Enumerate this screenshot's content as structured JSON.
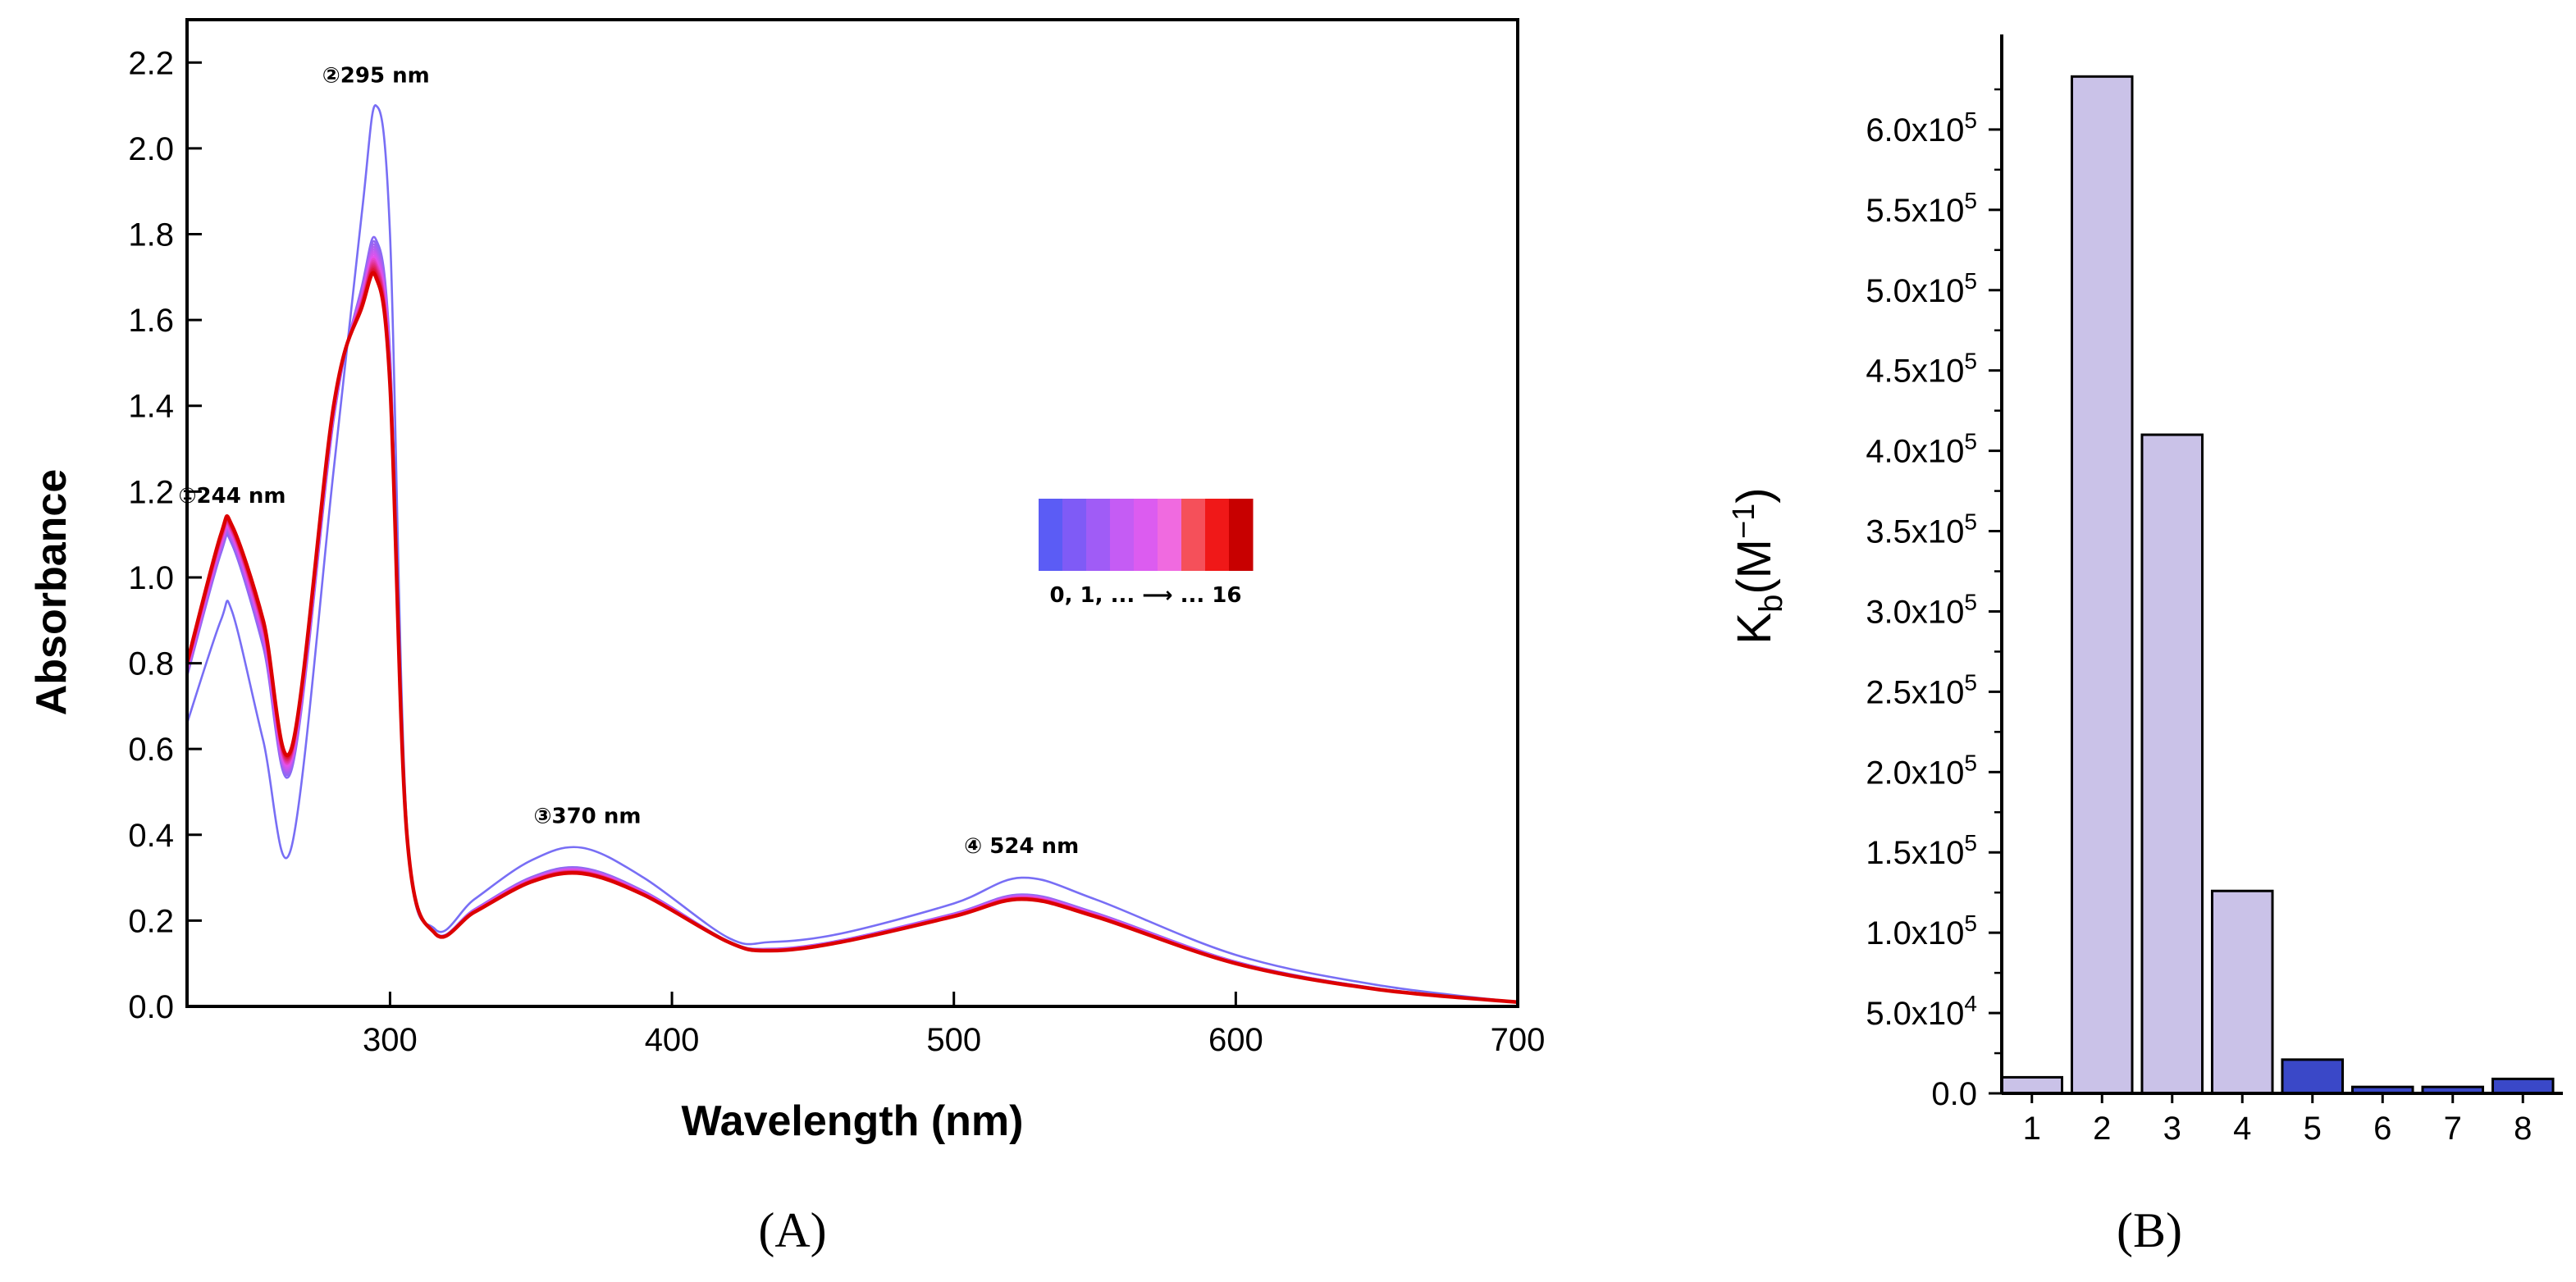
{
  "chart_data": [
    {
      "type": "line",
      "panel_label": "(A)",
      "xlabel": "Wavelength (nm)",
      "ylabel": "Absorbance",
      "xlim": [
        228,
        700
      ],
      "ylim": [
        0,
        2.3
      ],
      "x_ticks": [
        "300",
        "400",
        "500",
        "600",
        "700"
      ],
      "y_ticks": [
        "0.0",
        "0.2",
        "0.4",
        "0.6",
        "0.8",
        "1.0",
        "1.2",
        "1.4",
        "1.6",
        "1.8",
        "2.0",
        "2.2"
      ],
      "n_spectra": 17,
      "x": [
        228,
        240,
        244,
        255,
        265,
        280,
        290,
        295,
        300,
        306,
        316,
        330,
        350,
        368,
        390,
        420,
        435,
        460,
        500,
        524,
        550,
        600,
        650,
        700
      ],
      "first_spectrum": [
        0.66,
        0.9,
        0.92,
        0.62,
        0.37,
        1.25,
        1.85,
        2.1,
        1.8,
        0.42,
        0.18,
        0.25,
        0.34,
        0.37,
        0.3,
        0.16,
        0.15,
        0.17,
        0.24,
        0.3,
        0.25,
        0.12,
        0.05,
        0.01
      ],
      "last_spectrum": [
        0.8,
        1.1,
        1.12,
        0.9,
        0.6,
        1.4,
        1.63,
        1.7,
        1.45,
        0.4,
        0.17,
        0.22,
        0.29,
        0.31,
        0.26,
        0.15,
        0.13,
        0.15,
        0.21,
        0.25,
        0.21,
        0.1,
        0.04,
        0.01
      ],
      "annotations": [
        {
          "text": "①244 nm",
          "x": 244,
          "y": 1.12
        },
        {
          "text": "②295 nm",
          "x": 295,
          "y": 2.1
        },
        {
          "text": "③370 nm",
          "x": 370,
          "y": 0.37
        },
        {
          "text": "④ 524 nm",
          "x": 524,
          "y": 0.3
        }
      ],
      "legend": {
        "colors": [
          "#5b5cf5",
          "#7f5bf6",
          "#a05cf6",
          "#c55cf4",
          "#dc5cf0",
          "#f06ae0",
          "#f5505a",
          "#f01818",
          "#c80000"
        ],
        "label": "0, 1, ... ⟶ ... 16",
        "placement": "center-right"
      }
    },
    {
      "type": "bar",
      "panel_label": "(B)",
      "ylabel": "K_b(M^-1)",
      "ylabel_main": "K",
      "ylabel_sub": "b",
      "ylabel_paren": "(M",
      "ylabel_sup": "−1",
      "ylabel_close": ")",
      "categories": [
        "1",
        "2",
        "3",
        "4",
        "5",
        "6",
        "7",
        "8"
      ],
      "values": [
        10000,
        633000,
        410000,
        126000,
        21000,
        4000,
        4000,
        9000
      ],
      "colors": [
        "#cac2e8",
        "#cac2e8",
        "#cac2e8",
        "#cac2e8",
        "#3a48c8",
        "#3a48c8",
        "#3a48c8",
        "#3a48c8"
      ],
      "ylim": [
        0,
        650000
      ],
      "y_ticks": [
        {
          "value": 0,
          "base": "0.0",
          "exp": ""
        },
        {
          "value": 50000,
          "base": "5.0x10",
          "exp": "4"
        },
        {
          "value": 100000,
          "base": "1.0x10",
          "exp": "5"
        },
        {
          "value": 150000,
          "base": "1.5x10",
          "exp": "5"
        },
        {
          "value": 200000,
          "base": "2.0x10",
          "exp": "5"
        },
        {
          "value": 250000,
          "base": "2.5x10",
          "exp": "5"
        },
        {
          "value": 300000,
          "base": "3.0x10",
          "exp": "5"
        },
        {
          "value": 350000,
          "base": "3.5x10",
          "exp": "5"
        },
        {
          "value": 400000,
          "base": "4.0x10",
          "exp": "5"
        },
        {
          "value": 450000,
          "base": "4.5x10",
          "exp": "5"
        },
        {
          "value": 500000,
          "base": "5.0x10",
          "exp": "5"
        },
        {
          "value": 550000,
          "base": "5.5x10",
          "exp": "5"
        },
        {
          "value": 600000,
          "base": "6.0x10",
          "exp": "5"
        }
      ]
    }
  ]
}
